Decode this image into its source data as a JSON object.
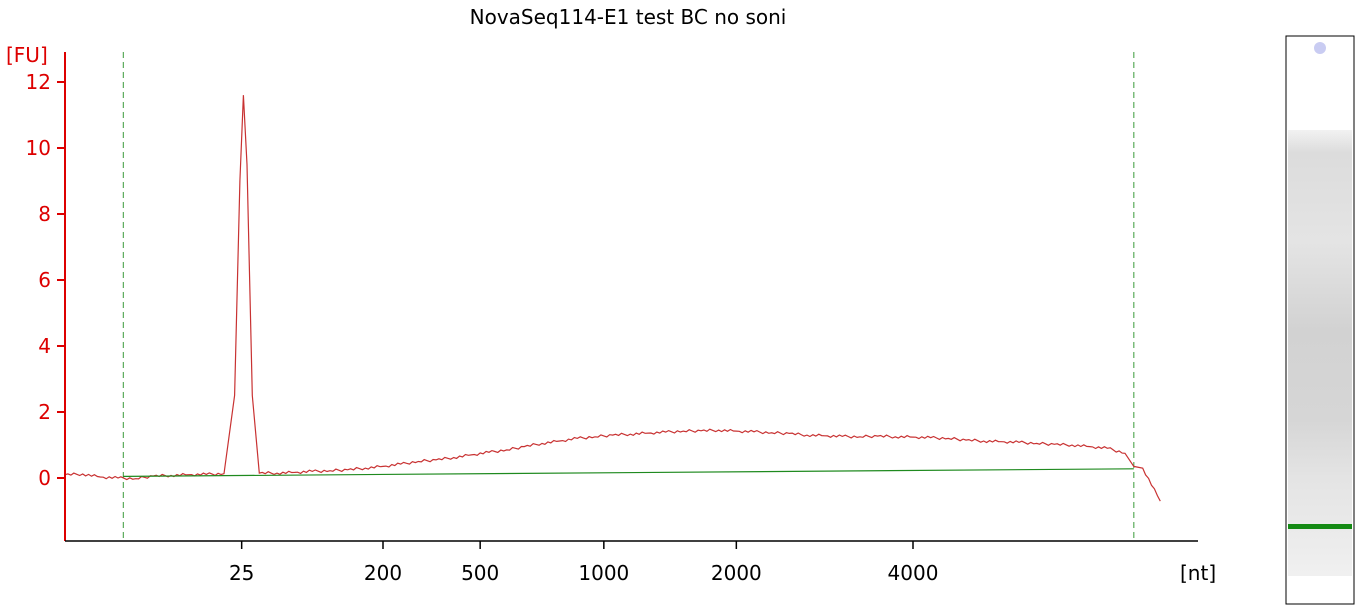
{
  "chart_data": {
    "type": "line",
    "title": "NovaSeq114-E1 test BC no soni",
    "ylabel": "[FU]",
    "xlabel": "[nt]",
    "ylim": [
      -2,
      13
    ],
    "yticks": [
      0,
      2,
      4,
      6,
      8,
      10,
      12
    ],
    "ytick_labels": [
      "0",
      "2",
      "4",
      "6",
      "8",
      "10",
      "12"
    ],
    "xlim": [
      15,
      78
    ],
    "xticks": [
      {
        "label": "25",
        "x": 25
      },
      {
        "label": "200",
        "x": 33
      },
      {
        "label": "500",
        "x": 38.5
      },
      {
        "label": "1000",
        "x": 45.5
      },
      {
        "label": "2000",
        "x": 53
      },
      {
        "label": "4000",
        "x": 63
      }
    ],
    "marker_lines_x": [
      18.3,
      75.5
    ],
    "series": [
      {
        "color": "#c83232",
        "x": [
          15,
          16,
          17,
          18,
          19,
          20,
          21,
          22,
          23,
          24,
          24.6,
          24.9,
          25.1,
          25.3,
          25.6,
          26,
          27,
          28,
          29,
          30,
          31,
          32,
          33,
          34,
          35,
          36,
          37,
          38,
          39,
          40,
          41,
          42,
          43,
          44,
          45,
          46,
          47,
          48,
          49,
          50,
          51,
          52,
          53,
          54,
          55,
          56,
          57,
          58,
          59,
          60,
          61,
          62,
          63,
          64,
          65,
          66,
          67,
          68,
          69,
          70,
          71,
          72,
          73,
          74,
          75,
          75.5,
          76,
          77
        ],
        "y": [
          0.1,
          0.12,
          0.03,
          0.0,
          -0.02,
          0.06,
          0.08,
          0.1,
          0.11,
          0.13,
          2.5,
          9.0,
          11.6,
          9.5,
          2.5,
          0.15,
          0.15,
          0.17,
          0.2,
          0.22,
          0.25,
          0.3,
          0.35,
          0.42,
          0.5,
          0.55,
          0.62,
          0.7,
          0.78,
          0.85,
          0.95,
          1.05,
          1.12,
          1.2,
          1.25,
          1.3,
          1.33,
          1.36,
          1.39,
          1.42,
          1.43,
          1.45,
          1.42,
          1.4,
          1.37,
          1.35,
          1.3,
          1.28,
          1.26,
          1.25,
          1.27,
          1.25,
          1.24,
          1.22,
          1.2,
          1.15,
          1.12,
          1.1,
          1.08,
          1.05,
          1.02,
          1.0,
          0.95,
          0.9,
          0.75,
          0.35,
          0.3,
          -0.7
        ]
      },
      {
        "color": "#1f8a1f",
        "x": [
          18.3,
          75.5
        ],
        "y": [
          0.05,
          0.28
        ]
      }
    ],
    "grid": false,
    "legend": "none"
  },
  "gel_lane": {
    "background": "#ffffff",
    "band_color": "#148a14",
    "dot_color": "#c9ccf2"
  }
}
